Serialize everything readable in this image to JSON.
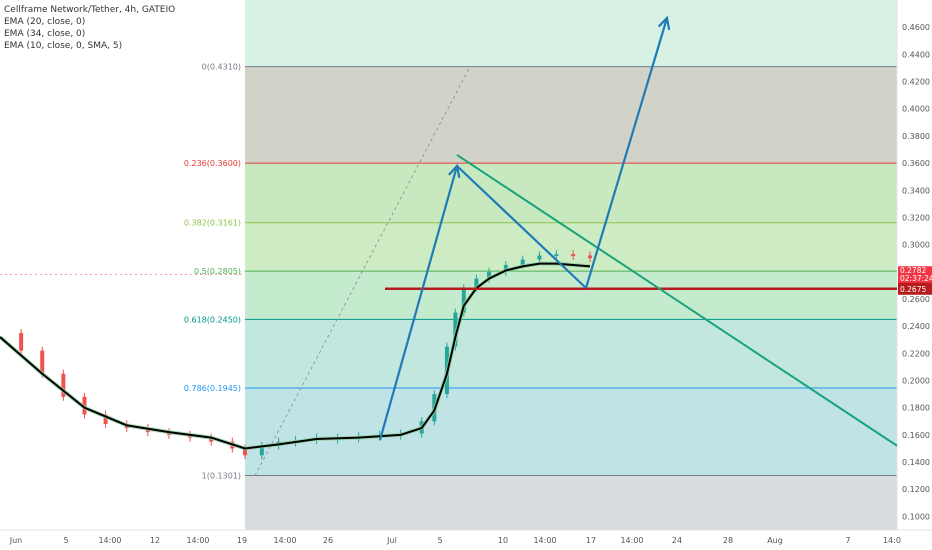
{
  "legend": {
    "symbol": "Cellframe Network/Tether, 4h, GATEIO",
    "indicators": [
      "EMA (20, close, 0)",
      "EMA (34, close, 0)",
      "EMA (10, close, 0, SMA, 5)"
    ]
  },
  "chart_data": {
    "type": "line",
    "title": "Cellframe Network/Tether, 4h, GATEIO",
    "y_axis": {
      "ticks": [
        "0.1000",
        "0.1200",
        "0.1400",
        "0.1600",
        "0.1800",
        "0.2000",
        "0.2200",
        "0.2400",
        "0.2600",
        "0.2800",
        "0.3000",
        "0.3200",
        "0.3400",
        "0.3600",
        "0.3800",
        "0.4000",
        "0.4200",
        "0.4400",
        "0.4600"
      ],
      "ylim": [
        0.09,
        0.48
      ]
    },
    "x_axis": {
      "ticks": [
        "Jun",
        "5",
        "14:00",
        "12",
        "14:00",
        "19",
        "14:00",
        "26",
        "Jul",
        "5",
        "10",
        "14:00",
        "17",
        "14:00",
        "24",
        "28",
        "Aug",
        "7",
        "14:0"
      ]
    },
    "fib_levels": [
      {
        "ratio": "0",
        "value": 0.431,
        "label": "0(0.4310)",
        "color": "#787b86"
      },
      {
        "ratio": "0.236",
        "value": 0.36,
        "label": "0.236(0.3600)",
        "color": "#e53935"
      },
      {
        "ratio": "0.382",
        "value": 0.3161,
        "label": "0.382(0.3161)",
        "color": "#8bc34a"
      },
      {
        "ratio": "0.5",
        "value": 0.2805,
        "label": "0.5(0.2805)",
        "color": "#4caf50"
      },
      {
        "ratio": "0.618",
        "value": 0.245,
        "label": "0.618(0.2450)",
        "color": "#009688"
      },
      {
        "ratio": "0.786",
        "value": 0.1945,
        "label": "0.786(0.1945)",
        "color": "#2196f3"
      },
      {
        "ratio": "1",
        "value": 0.1301,
        "label": "1(0.1301)",
        "color": "#787b86"
      }
    ],
    "price_series": [
      {
        "x": 0,
        "y": 0.235
      },
      {
        "x": 5,
        "y": 0.222
      },
      {
        "x": 10,
        "y": 0.205
      },
      {
        "x": 15,
        "y": 0.188
      },
      {
        "x": 20,
        "y": 0.175
      },
      {
        "x": 25,
        "y": 0.168
      },
      {
        "x": 30,
        "y": 0.165
      },
      {
        "x": 35,
        "y": 0.162
      },
      {
        "x": 40,
        "y": 0.16
      },
      {
        "x": 45,
        "y": 0.158
      },
      {
        "x": 50,
        "y": 0.155
      },
      {
        "x": 55,
        "y": 0.15
      },
      {
        "x": 58,
        "y": 0.145
      },
      {
        "x": 62,
        "y": 0.152
      },
      {
        "x": 66,
        "y": 0.155
      },
      {
        "x": 70,
        "y": 0.156
      },
      {
        "x": 75,
        "y": 0.158
      },
      {
        "x": 80,
        "y": 0.158
      },
      {
        "x": 85,
        "y": 0.159
      },
      {
        "x": 90,
        "y": 0.16
      },
      {
        "x": 95,
        "y": 0.161
      },
      {
        "x": 100,
        "y": 0.17
      },
      {
        "x": 103,
        "y": 0.19
      },
      {
        "x": 106,
        "y": 0.225
      },
      {
        "x": 108,
        "y": 0.25
      },
      {
        "x": 110,
        "y": 0.268
      },
      {
        "x": 113,
        "y": 0.275
      },
      {
        "x": 116,
        "y": 0.28
      },
      {
        "x": 120,
        "y": 0.285
      },
      {
        "x": 124,
        "y": 0.289
      },
      {
        "x": 128,
        "y": 0.292
      },
      {
        "x": 132,
        "y": 0.293
      },
      {
        "x": 136,
        "y": 0.292
      },
      {
        "x": 140,
        "y": 0.29
      }
    ],
    "ema_series": [
      {
        "x": 0,
        "y": 0.232
      },
      {
        "x": 10,
        "y": 0.205
      },
      {
        "x": 20,
        "y": 0.18
      },
      {
        "x": 30,
        "y": 0.167
      },
      {
        "x": 40,
        "y": 0.162
      },
      {
        "x": 50,
        "y": 0.158
      },
      {
        "x": 58,
        "y": 0.15
      },
      {
        "x": 66,
        "y": 0.153
      },
      {
        "x": 75,
        "y": 0.157
      },
      {
        "x": 85,
        "y": 0.158
      },
      {
        "x": 95,
        "y": 0.16
      },
      {
        "x": 100,
        "y": 0.165
      },
      {
        "x": 103,
        "y": 0.178
      },
      {
        "x": 106,
        "y": 0.205
      },
      {
        "x": 108,
        "y": 0.232
      },
      {
        "x": 110,
        "y": 0.255
      },
      {
        "x": 113,
        "y": 0.268
      },
      {
        "x": 116,
        "y": 0.275
      },
      {
        "x": 120,
        "y": 0.281
      },
      {
        "x": 124,
        "y": 0.284
      },
      {
        "x": 128,
        "y": 0.286
      },
      {
        "x": 132,
        "y": 0.286
      },
      {
        "x": 136,
        "y": 0.285
      },
      {
        "x": 140,
        "y": 0.284
      }
    ],
    "current_price": {
      "value": 0.2782,
      "label": "0.2782",
      "countdown": "02:37:24",
      "color": "#f23645"
    },
    "support": {
      "value": 0.2675,
      "label": "0.2675",
      "color": "#b71c1c"
    },
    "colors": {
      "up": "#26a69a",
      "down": "#ef5350",
      "ema": "#000000",
      "arrow": "#1f7bb6",
      "trendline": "#1aa37a"
    }
  }
}
